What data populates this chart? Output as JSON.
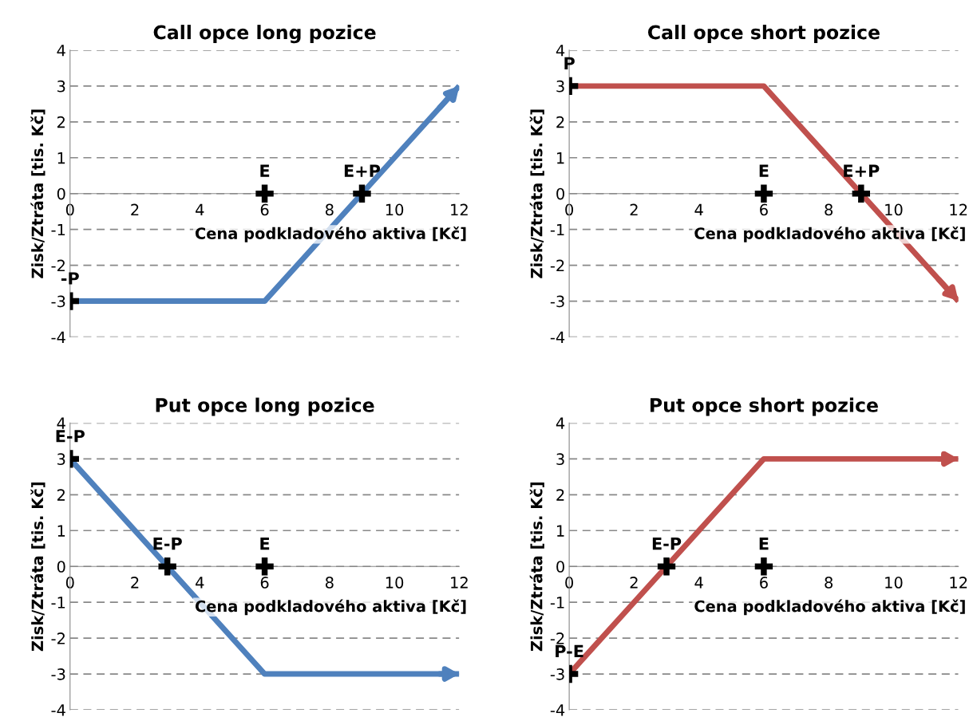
{
  "chart_data": [
    {
      "type": "line",
      "title": "Call opce long pozice",
      "xlabel": "Cena podkladového aktiva [Kč]",
      "ylabel": "Zisk/Ztráta [tis. Kč]",
      "xlim": [
        0,
        12
      ],
      "xticks": [
        0,
        2,
        4,
        6,
        8,
        10,
        12
      ],
      "ylim": [
        -4,
        4
      ],
      "yticks": [
        -4,
        -3,
        -2,
        -1,
        0,
        1,
        2,
        3,
        4
      ],
      "grid": "y",
      "series": [
        {
          "color": "#4f81bd",
          "x": [
            0,
            6,
            12
          ],
          "values": [
            -3,
            -3,
            3
          ]
        },
        {
          "type": "scatter",
          "color": "#000000",
          "marker": "cross",
          "x": [
            0,
            6,
            9
          ],
          "values": [
            -3,
            0,
            0
          ]
        }
      ],
      "annotations": [
        {
          "text": "-P",
          "x": 0,
          "y": -3
        },
        {
          "text": "E",
          "x": 6,
          "y": 0
        },
        {
          "text": "E+P",
          "x": 9,
          "y": 0
        }
      ]
    },
    {
      "type": "line",
      "title": "Call opce short pozice",
      "xlabel": "Cena podkladového aktiva [Kč]",
      "ylabel": "Zisk/Ztráta [tis. Kč]",
      "xlim": [
        0,
        12
      ],
      "xticks": [
        0,
        2,
        4,
        6,
        8,
        10,
        12
      ],
      "ylim": [
        -4,
        4
      ],
      "yticks": [
        -4,
        -3,
        -2,
        -1,
        0,
        1,
        2,
        3,
        4
      ],
      "grid": "y",
      "series": [
        {
          "color": "#c0504d",
          "x": [
            0,
            6,
            12
          ],
          "values": [
            3,
            3,
            -3
          ]
        },
        {
          "type": "scatter",
          "color": "#000000",
          "marker": "cross",
          "x": [
            0,
            6,
            9
          ],
          "values": [
            3,
            0,
            0
          ]
        }
      ],
      "annotations": [
        {
          "text": "P",
          "x": 0,
          "y": 3
        },
        {
          "text": "E",
          "x": 6,
          "y": 0
        },
        {
          "text": "E+P",
          "x": 9,
          "y": 0
        }
      ]
    },
    {
      "type": "line",
      "title": "Put opce long pozice",
      "xlabel": "Cena podkladového aktiva [Kč]",
      "ylabel": "Zisk/Ztráta [tis. Kč]",
      "xlim": [
        0,
        12
      ],
      "xticks": [
        0,
        2,
        4,
        6,
        8,
        10,
        12
      ],
      "ylim": [
        -4,
        4
      ],
      "yticks": [
        -4,
        -3,
        -2,
        -1,
        0,
        1,
        2,
        3,
        4
      ],
      "grid": "y",
      "series": [
        {
          "color": "#4f81bd",
          "x": [
            0,
            6,
            12
          ],
          "values": [
            3,
            -3,
            -3
          ]
        },
        {
          "type": "scatter",
          "color": "#000000",
          "marker": "cross",
          "x": [
            0,
            3,
            6
          ],
          "values": [
            3,
            0,
            0
          ]
        }
      ],
      "annotations": [
        {
          "text": "E-P",
          "x": 0,
          "y": 3
        },
        {
          "text": "E-P",
          "x": 3,
          "y": 0
        },
        {
          "text": "E",
          "x": 6,
          "y": 0
        }
      ]
    },
    {
      "type": "line",
      "title": "Put opce short pozice",
      "xlabel": "Cena podkladového aktiva [Kč]",
      "ylabel": "Zisk/Ztráta [tis. Kč]",
      "xlim": [
        0,
        12
      ],
      "xticks": [
        0,
        2,
        4,
        6,
        8,
        10,
        12
      ],
      "ylim": [
        -4,
        4
      ],
      "yticks": [
        -4,
        -3,
        -2,
        -1,
        0,
        1,
        2,
        3,
        4
      ],
      "grid": "y",
      "series": [
        {
          "color": "#c0504d",
          "x": [
            0,
            6,
            12
          ],
          "values": [
            -3,
            3,
            3
          ]
        },
        {
          "type": "scatter",
          "color": "#000000",
          "marker": "cross",
          "x": [
            0,
            3,
            6
          ],
          "values": [
            -3,
            0,
            0
          ]
        }
      ],
      "annotations": [
        {
          "text": "P-E",
          "x": 0,
          "y": -3
        },
        {
          "text": "E-P",
          "x": 3,
          "y": 0
        },
        {
          "text": "E",
          "x": 6,
          "y": 0
        }
      ]
    }
  ]
}
